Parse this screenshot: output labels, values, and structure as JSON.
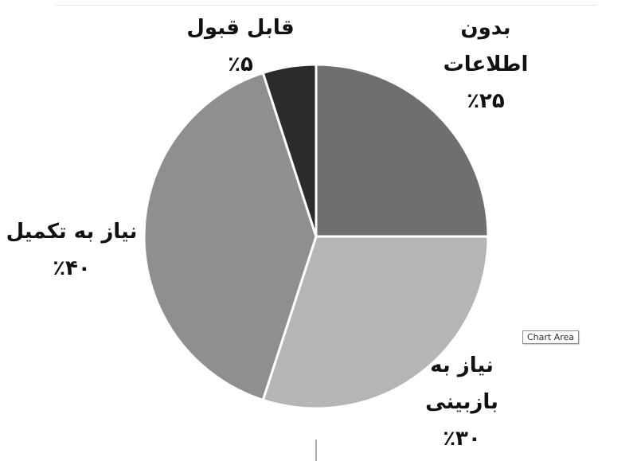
{
  "chart_data": {
    "type": "pie",
    "title": "",
    "categories": [
      "بدون اطلاعات",
      "نیاز به بازبینی",
      "نیاز به تکمیل",
      "قابل قبول"
    ],
    "values": [
      25,
      30,
      40,
      5
    ],
    "value_labels": [
      "٪۲۵",
      "٪۳۰",
      "٪۴۰",
      "٪۵"
    ],
    "colors": [
      "#6f6f6f",
      "#b5b5b5",
      "#8f8f8f",
      "#2b2b2b"
    ],
    "start": "12 o'clock, clockwise",
    "legend": "none"
  },
  "labels": {
    "no_info_line1": "بدون",
    "no_info_line2": "اطلاعات",
    "no_info_pct": "٪۲۵",
    "acceptable": "قابل قبول",
    "acceptable_pct": "٪۵",
    "needs_completion": "نیاز به تکمیل",
    "needs_completion_pct": "٪۴۰",
    "needs_review_line1": "نیاز به",
    "needs_review_line2": "بازبینی",
    "needs_review_pct": "٪۳۰"
  },
  "tooltip": {
    "text": "Chart Area"
  }
}
